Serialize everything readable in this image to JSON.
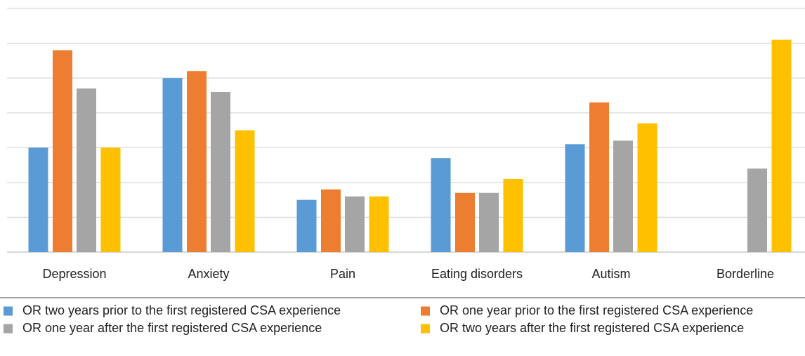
{
  "chart_data": {
    "type": "bar",
    "categories": [
      "Depression",
      "Anxiety",
      "Pain",
      "Eating disorders",
      "Autism",
      "Borderline"
    ],
    "series": [
      {
        "name": "OR two years prior to the first registered CSA experience",
        "color": "#5b9bd5",
        "values": [
          3.0,
          5.0,
          1.5,
          2.7,
          3.1,
          null
        ]
      },
      {
        "name": "OR one year prior to the first registered CSA experience",
        "color": "#ed7d31",
        "values": [
          5.8,
          5.2,
          1.8,
          1.7,
          4.3,
          null
        ]
      },
      {
        "name": "OR one year after the first registered CSA experience",
        "color": "#a5a5a5",
        "values": [
          4.7,
          4.6,
          1.6,
          1.7,
          3.2,
          2.4
        ]
      },
      {
        "name": "OR two years after the first registered CSA experience",
        "color": "#ffc000",
        "values": [
          3.0,
          3.5,
          1.6,
          2.1,
          3.7,
          6.1
        ]
      }
    ],
    "ylim": [
      0,
      7
    ],
    "grid": true
  }
}
